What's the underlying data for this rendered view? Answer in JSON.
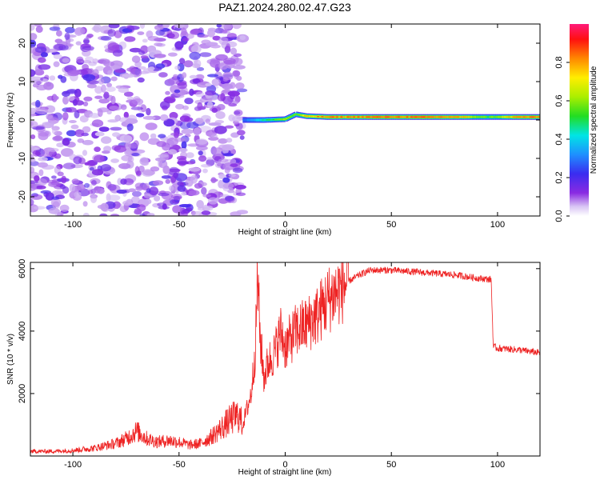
{
  "title": "PAZ1.2024.280.02.47.G23",
  "chart_data": [
    {
      "type": "heatmap",
      "xlabel": "Height of straight line (km)",
      "ylabel": "Frequency (Hz)",
      "xlim": [
        -120,
        120
      ],
      "ylim": [
        -25,
        25
      ],
      "xticks": [
        -100,
        -50,
        0,
        50,
        100
      ],
      "yticks": [
        -20,
        -10,
        0,
        10,
        20
      ],
      "noise_region_x": [
        -120,
        -20
      ],
      "signal_band": [
        {
          "x": -20,
          "freq": 0.0,
          "amp": 0.3
        },
        {
          "x": -10,
          "freq": 0.0,
          "amp": 0.5
        },
        {
          "x": 0,
          "freq": 0.2,
          "amp": 0.7
        },
        {
          "x": 5,
          "freq": 1.5,
          "amp": 0.6
        },
        {
          "x": 10,
          "freq": 1.0,
          "amp": 0.8
        },
        {
          "x": 20,
          "freq": 0.8,
          "amp": 0.9
        },
        {
          "x": 50,
          "freq": 0.8,
          "amp": 0.95
        },
        {
          "x": 80,
          "freq": 0.8,
          "amp": 0.9
        },
        {
          "x": 95,
          "freq": 0.8,
          "amp": 0.6
        },
        {
          "x": 110,
          "freq": 0.8,
          "amp": 0.9
        },
        {
          "x": 120,
          "freq": 0.8,
          "amp": 0.9
        }
      ],
      "colorbar": {
        "label": "Normalized spectral amplitude",
        "ticks": [
          "0.0",
          "0.2",
          "0.4",
          "0.6",
          "0.8"
        ],
        "range": [
          0,
          1
        ]
      }
    },
    {
      "type": "line",
      "xlabel": "Height of straight line (km)",
      "ylabel": "SNR (10 * v/v)",
      "xlim": [
        -120,
        120
      ],
      "ylim": [
        0,
        6200
      ],
      "xticks": [
        -100,
        -50,
        0,
        50,
        100
      ],
      "yticks": [
        2000,
        4000,
        6000
      ],
      "color": "#ee2222",
      "series": [
        {
          "x": [
            -120,
            -110,
            -100,
            -90,
            -80,
            -75,
            -70,
            -65,
            -60,
            -55,
            -50,
            -45,
            -40,
            -35,
            -30,
            -25,
            -22,
            -20,
            -18,
            -16,
            -14,
            -13,
            -12,
            -10,
            -8,
            -5,
            -2,
            0,
            5,
            10,
            15,
            20,
            25,
            30,
            35,
            40,
            50,
            60,
            70,
            80,
            90,
            97,
            98,
            100,
            110,
            120
          ],
          "y": [
            150,
            150,
            180,
            250,
            400,
            550,
            800,
            550,
            450,
            500,
            450,
            350,
            400,
            600,
            900,
            1200,
            1300,
            1000,
            1500,
            2000,
            3500,
            5900,
            4000,
            2500,
            3000,
            3300,
            4000,
            3500,
            4000,
            4200,
            4500,
            5000,
            5300,
            5600,
            5800,
            5950,
            5950,
            5900,
            5850,
            5800,
            5700,
            5650,
            3500,
            3450,
            3400,
            3300
          ]
        }
      ]
    }
  ]
}
